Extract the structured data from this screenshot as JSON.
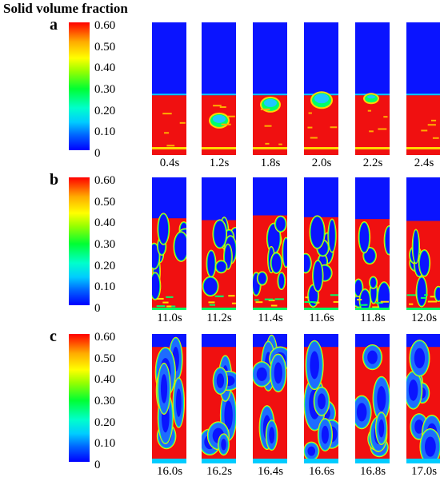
{
  "figure": {
    "title": "Solid volume fraction",
    "colorbar_ticks": [
      "0.60",
      "0.50",
      "0.40",
      "0.30",
      "0.20",
      "0.10",
      "0"
    ],
    "colormap": [
      "#0000ff",
      "#00ccff",
      "#00ff33",
      "#ffff00",
      "#ff0000"
    ],
    "panels": [
      {
        "letter": "a",
        "times": [
          "0.4s",
          "1.2s",
          "1.8s",
          "2.0s",
          "2.2s",
          "2.4s"
        ]
      },
      {
        "letter": "b",
        "times": [
          "11.0s",
          "11.2s",
          "11.4s",
          "11.6s",
          "11.8s",
          "12.0s"
        ]
      },
      {
        "letter": "c",
        "times": [
          "16.0s",
          "16.2s",
          "16.4s",
          "16.6s",
          "16.8s",
          "17.0s"
        ]
      }
    ]
  }
}
